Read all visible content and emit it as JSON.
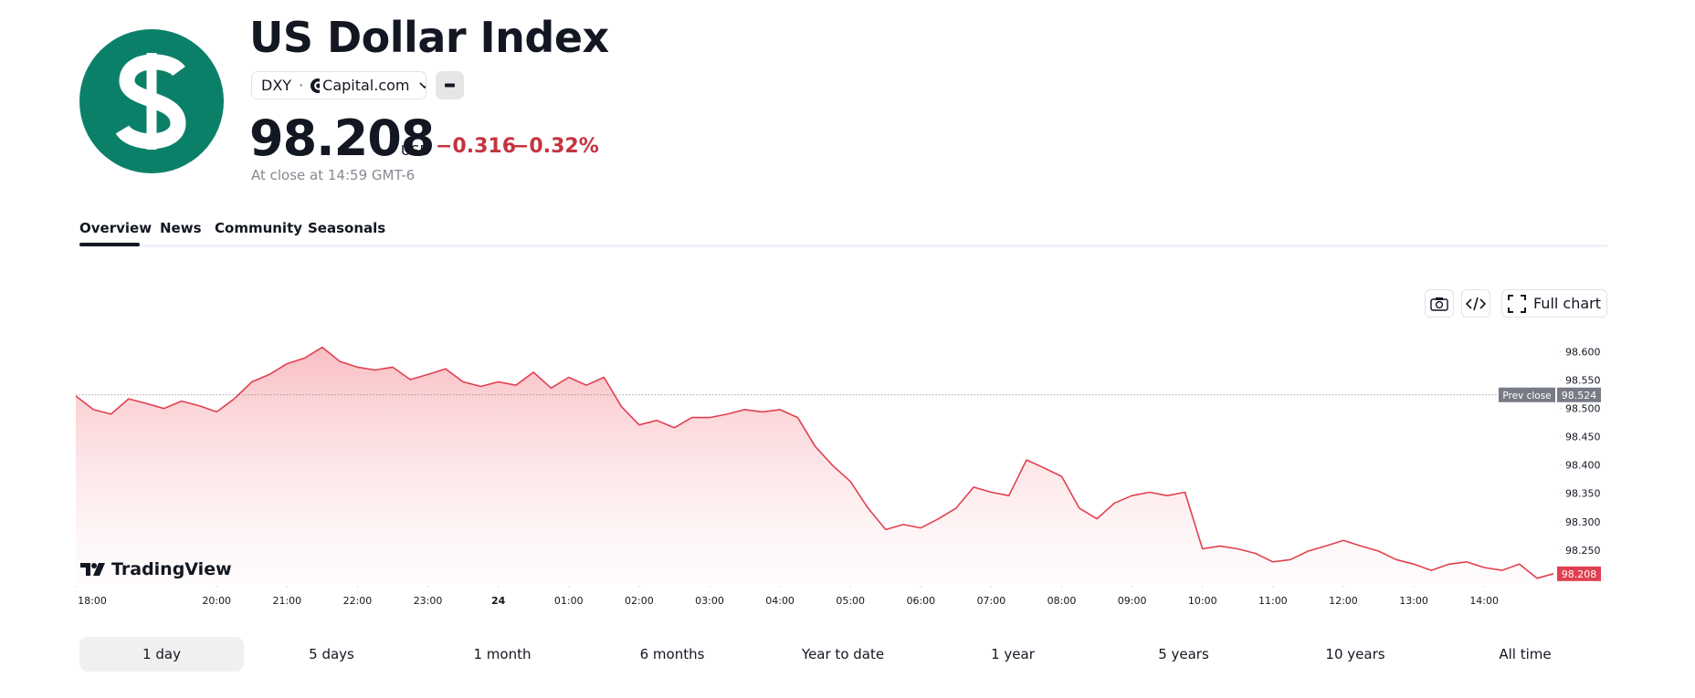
{
  "header": {
    "title": "US Dollar Index",
    "symbol": "DXY",
    "source": "Capital.com",
    "price": "98.208",
    "currency": "USD",
    "change": "−0.316",
    "change_pct": "−0.32%",
    "status": "At close at 14:59 GMT-6"
  },
  "tabs": [
    "Overview",
    "News",
    "Community",
    "Seasonals"
  ],
  "toolbar": {
    "full_chart": "Full chart"
  },
  "ranges": [
    "1 day",
    "5 days",
    "1 month",
    "6 months",
    "Year to date",
    "1 year",
    "5 years",
    "10 years",
    "All time"
  ],
  "chart_data": {
    "type": "area",
    "watermark": "TradingView",
    "color": "#e04050",
    "x": [
      "18:00",
      "18:15",
      "18:30",
      "18:45",
      "19:00",
      "19:15",
      "19:30",
      "19:45",
      "20:00",
      "20:15",
      "20:30",
      "20:45",
      "21:00",
      "21:15",
      "21:30",
      "21:45",
      "22:00",
      "22:15",
      "22:30",
      "22:45",
      "23:00",
      "23:15",
      "23:30",
      "23:45",
      "00:00",
      "00:15",
      "00:30",
      "00:45",
      "01:00",
      "01:15",
      "01:30",
      "01:45",
      "02:00",
      "02:15",
      "02:30",
      "02:45",
      "03:00",
      "03:15",
      "03:30",
      "03:45",
      "04:00",
      "04:15",
      "04:30",
      "04:45",
      "05:00",
      "05:15",
      "05:30",
      "05:45",
      "06:00",
      "06:15",
      "06:30",
      "06:45",
      "07:00",
      "07:15",
      "07:30",
      "07:45",
      "08:00",
      "08:15",
      "08:30",
      "08:45",
      "09:00",
      "09:15",
      "09:30",
      "09:45",
      "10:00",
      "10:15",
      "10:30",
      "10:45",
      "11:00",
      "11:15",
      "11:30",
      "11:45",
      "12:00",
      "12:15",
      "12:30",
      "12:45",
      "13:00",
      "13:15",
      "13:30",
      "13:45",
      "14:00",
      "14:15",
      "14:30",
      "14:45",
      "14:59"
    ],
    "values": [
      98.522,
      98.498,
      98.49,
      98.517,
      98.509,
      98.5,
      98.513,
      98.505,
      98.494,
      98.517,
      98.547,
      98.56,
      98.579,
      98.589,
      98.608,
      98.583,
      98.573,
      98.568,
      98.573,
      98.551,
      98.56,
      98.57,
      98.547,
      98.539,
      98.547,
      98.541,
      98.564,
      98.536,
      98.555,
      98.541,
      98.555,
      98.503,
      98.471,
      98.479,
      98.466,
      98.484,
      98.484,
      98.49,
      98.498,
      98.494,
      98.498,
      98.484,
      98.433,
      98.399,
      98.371,
      98.324,
      98.286,
      98.295,
      98.289,
      98.305,
      98.324,
      98.361,
      98.352,
      98.346,
      98.409,
      98.395,
      98.38,
      98.324,
      98.305,
      98.333,
      98.346,
      98.352,
      98.346,
      98.352,
      98.252,
      98.257,
      98.252,
      98.244,
      98.229,
      98.233,
      98.248,
      98.257,
      98.267,
      98.257,
      98.248,
      98.233,
      98.225,
      98.214,
      98.225,
      98.229,
      98.219,
      98.214,
      98.225,
      98.2,
      98.208
    ],
    "xlim": [
      "18:00",
      "14:59"
    ],
    "xticks": [
      "18:00",
      "20:00",
      "21:00",
      "22:00",
      "23:00",
      {
        "value": "00:00",
        "label": "24"
      },
      "01:00",
      "02:00",
      "03:00",
      "04:00",
      "05:00",
      "06:00",
      "07:00",
      "08:00",
      "09:00",
      "10:00",
      "11:00",
      "12:00",
      "13:00",
      "14:00"
    ],
    "ylim": [
      98.19,
      98.63
    ],
    "yticks": [
      {
        "value": 98.25,
        "label": "98.250"
      },
      {
        "value": 98.3,
        "label": "98.300"
      },
      {
        "value": 98.35,
        "label": "98.350"
      },
      {
        "value": 98.4,
        "label": "98.400"
      },
      {
        "value": 98.45,
        "label": "98.450"
      },
      {
        "value": 98.5,
        "label": "98.500"
      },
      {
        "value": 98.55,
        "label": "98.550"
      },
      {
        "value": 98.6,
        "label": "98.600"
      }
    ],
    "prev_close": {
      "label": "Prev close",
      "value": 98.524
    }
  }
}
